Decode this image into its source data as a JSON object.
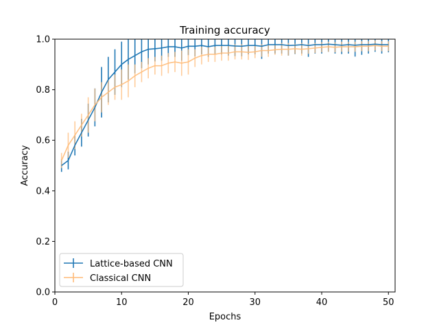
{
  "chart_data": {
    "type": "line",
    "title": "Training accuracy",
    "xlabel": "Epochs",
    "ylabel": "Accuracy",
    "xlim": [
      0,
      51
    ],
    "ylim": [
      0,
      1
    ],
    "xticks": [
      0,
      10,
      20,
      30,
      40,
      50
    ],
    "yticks": [
      0.0,
      0.2,
      0.4,
      0.6,
      0.8,
      1.0
    ],
    "ytick_labels": [
      "0.0",
      "0.2",
      "0.4",
      "0.6",
      "0.8",
      "1.0"
    ],
    "grid": false,
    "legend_position": "lower-left",
    "x": [
      1,
      2,
      3,
      4,
      5,
      6,
      7,
      8,
      9,
      10,
      11,
      12,
      13,
      14,
      15,
      16,
      17,
      18,
      19,
      20,
      21,
      22,
      23,
      24,
      25,
      26,
      27,
      28,
      29,
      30,
      31,
      32,
      33,
      34,
      35,
      36,
      37,
      38,
      39,
      40,
      41,
      42,
      43,
      44,
      45,
      46,
      47,
      48,
      49,
      50
    ],
    "series": [
      {
        "name": "Lattice-based CNN",
        "color": "#1f77b4",
        "values": [
          0.5,
          0.52,
          0.58,
          0.63,
          0.68,
          0.73,
          0.79,
          0.84,
          0.87,
          0.9,
          0.92,
          0.935,
          0.95,
          0.96,
          0.962,
          0.965,
          0.97,
          0.97,
          0.965,
          0.972,
          0.972,
          0.975,
          0.97,
          0.975,
          0.975,
          0.975,
          0.973,
          0.972,
          0.975,
          0.975,
          0.972,
          0.978,
          0.978,
          0.978,
          0.975,
          0.976,
          0.978,
          0.975,
          0.978,
          0.978,
          0.98,
          0.978,
          0.976,
          0.978,
          0.976,
          0.978,
          0.978,
          0.98,
          0.978,
          0.978
        ],
        "errors": [
          0.025,
          0.035,
          0.04,
          0.055,
          0.065,
          0.075,
          0.1,
          0.09,
          0.09,
          0.09,
          0.08,
          0.07,
          0.065,
          0.06,
          0.05,
          0.05,
          0.04,
          0.04,
          0.05,
          0.035,
          0.04,
          0.035,
          0.04,
          0.035,
          0.035,
          0.04,
          0.04,
          0.04,
          0.035,
          0.035,
          0.05,
          0.035,
          0.035,
          0.035,
          0.04,
          0.035,
          0.035,
          0.045,
          0.035,
          0.035,
          0.03,
          0.035,
          0.035,
          0.035,
          0.045,
          0.04,
          0.035,
          0.03,
          0.035,
          0.03
        ]
      },
      {
        "name": "Classical CNN",
        "color": "#ffbb78",
        "values": [
          0.52,
          0.58,
          0.62,
          0.66,
          0.7,
          0.74,
          0.77,
          0.79,
          0.81,
          0.82,
          0.835,
          0.855,
          0.87,
          0.885,
          0.895,
          0.895,
          0.905,
          0.91,
          0.905,
          0.91,
          0.925,
          0.935,
          0.94,
          0.94,
          0.945,
          0.945,
          0.95,
          0.95,
          0.948,
          0.95,
          0.955,
          0.955,
          0.958,
          0.96,
          0.96,
          0.962,
          0.96,
          0.962,
          0.965,
          0.968,
          0.97,
          0.968,
          0.97,
          0.97,
          0.97,
          0.972,
          0.972,
          0.975,
          0.972,
          0.972
        ],
        "errors": [
          0.03,
          0.05,
          0.055,
          0.045,
          0.07,
          0.065,
          0.06,
          0.05,
          0.05,
          0.06,
          0.065,
          0.045,
          0.04,
          0.04,
          0.035,
          0.04,
          0.04,
          0.04,
          0.05,
          0.05,
          0.035,
          0.035,
          0.03,
          0.03,
          0.03,
          0.03,
          0.03,
          0.03,
          0.03,
          0.025,
          0.025,
          0.025,
          0.02,
          0.025,
          0.025,
          0.02,
          0.025,
          0.02,
          0.02,
          0.02,
          0.02,
          0.02,
          0.02,
          0.02,
          0.02,
          0.02,
          0.02,
          0.02,
          0.02,
          0.02
        ]
      }
    ]
  }
}
